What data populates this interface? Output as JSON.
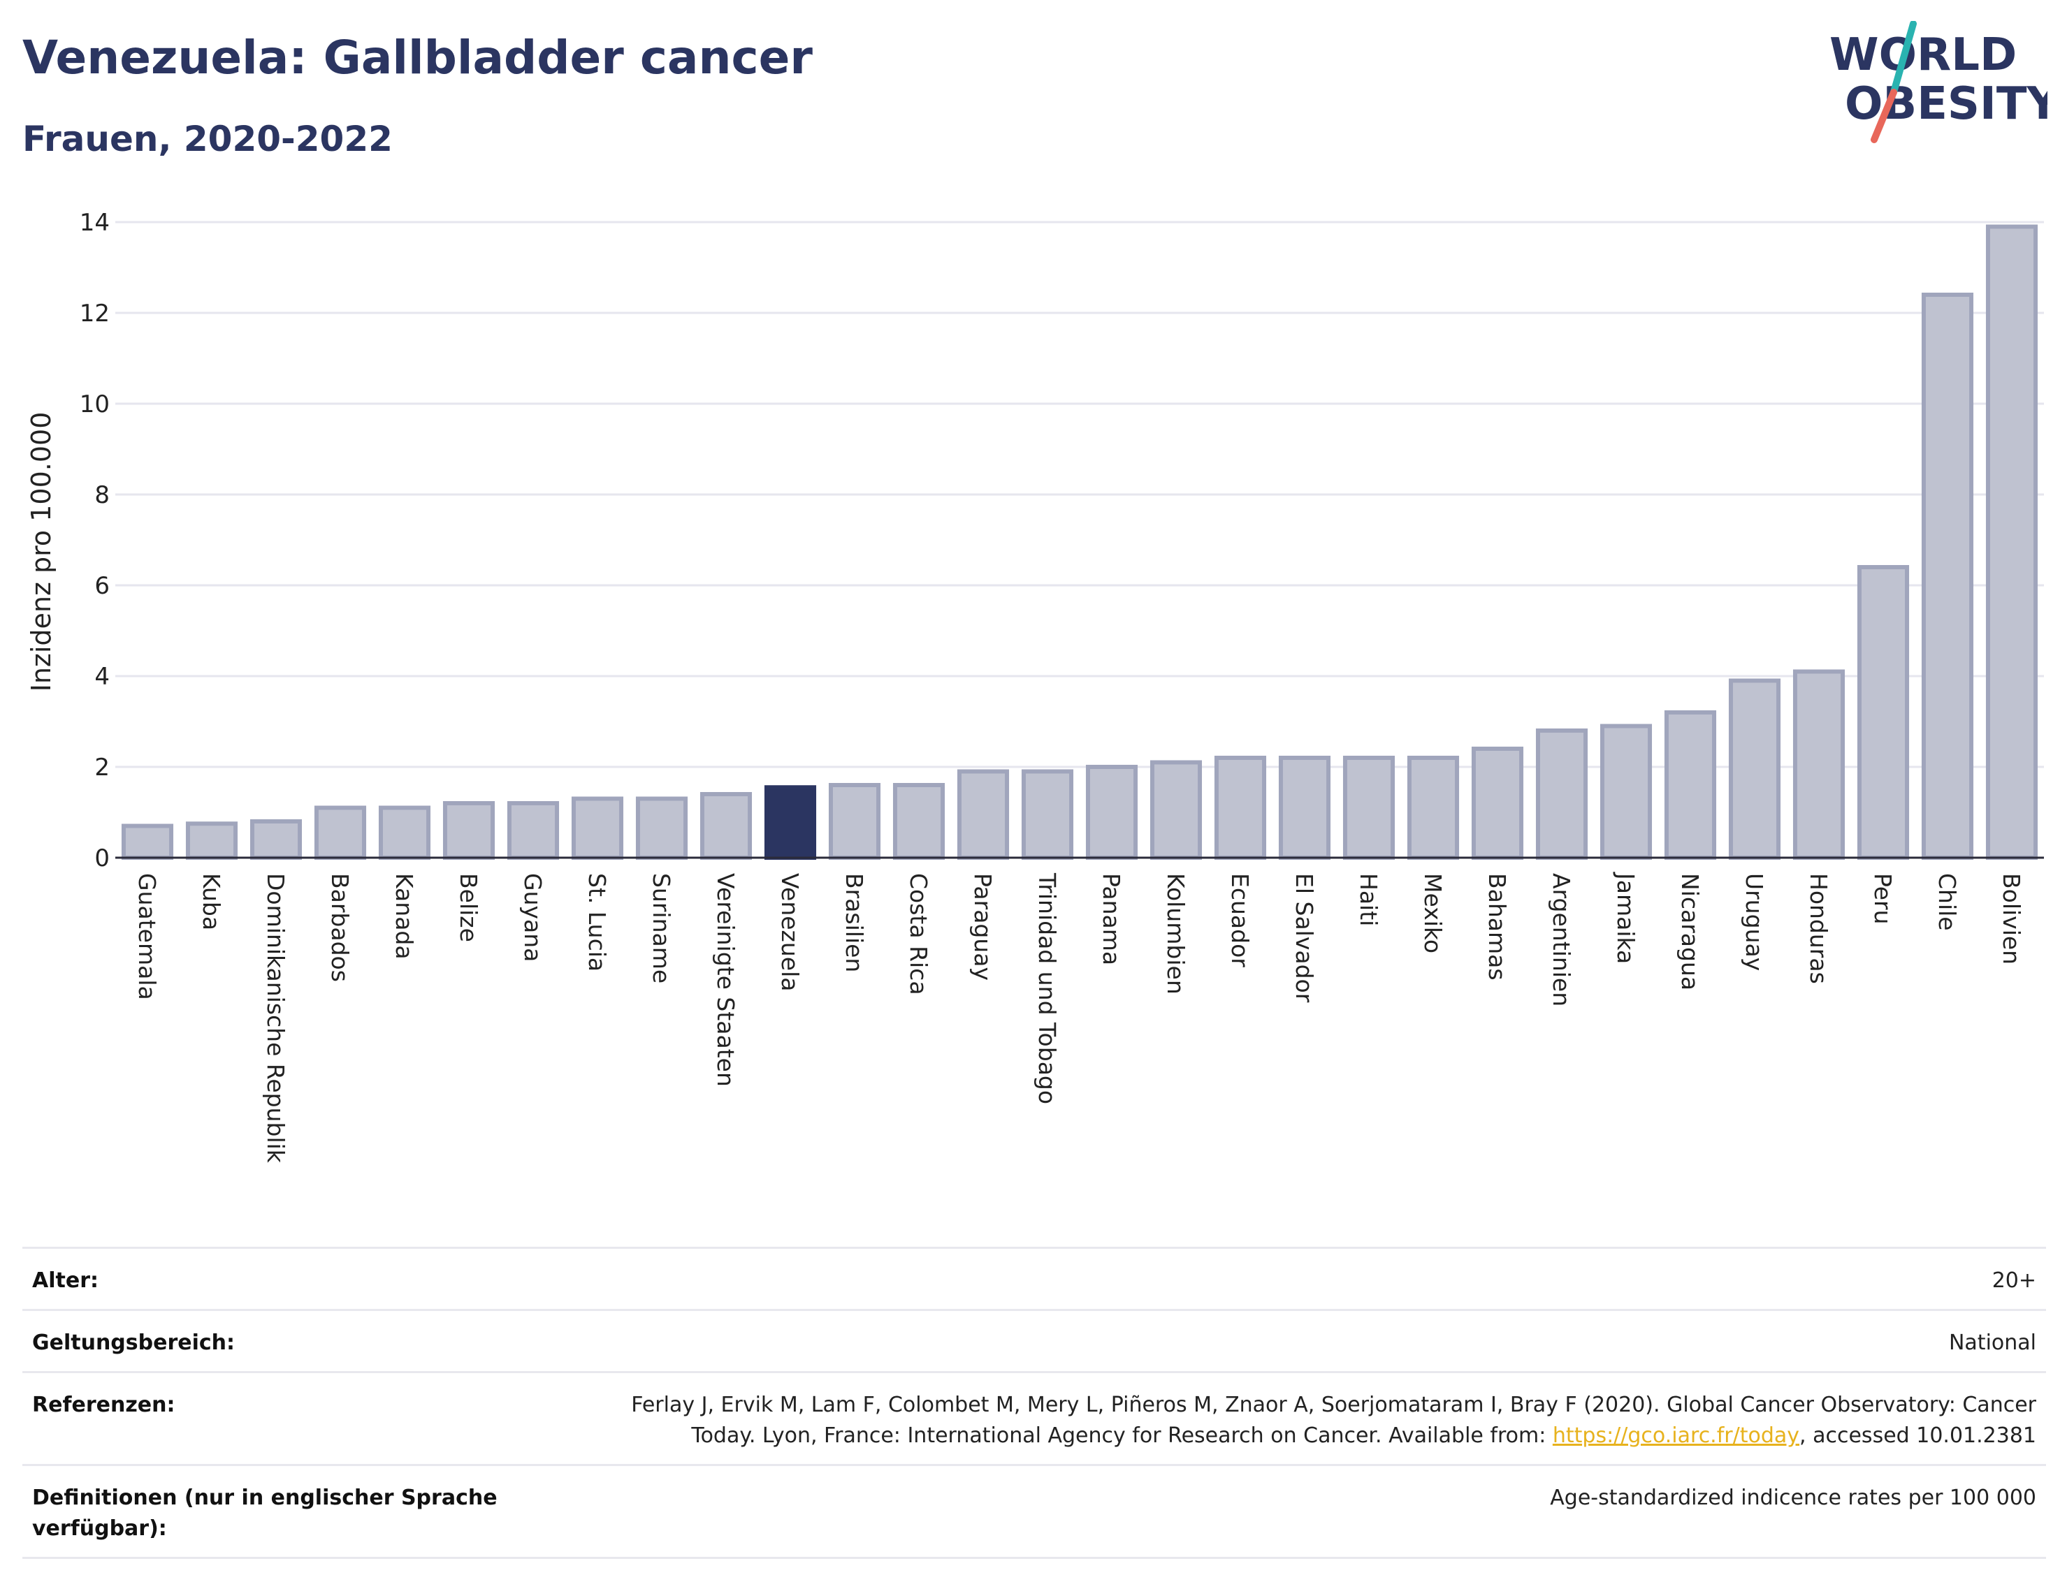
{
  "header": {
    "title": "Venezuela: Gallbladder cancer",
    "subtitle": "Frauen, 2020-2022"
  },
  "logo": {
    "line1": "WORLD",
    "line2": "OBESITY",
    "colors": {
      "text": "#2b3561",
      "slash_teal": "#2ab3b0",
      "slash_coral": "#e8675a"
    }
  },
  "colors": {
    "bar_fill": "#bfc2d0",
    "bar_stroke": "#a0a5bc",
    "highlight": "#2b3561",
    "grid": "#e6e6ee",
    "axis_text": "#222222"
  },
  "chart_data": {
    "type": "bar",
    "title": "Venezuela: Gallbladder cancer",
    "subtitle": "Frauen, 2020-2022",
    "xlabel": "",
    "ylabel": "Inzidenz pro 100.000",
    "ylim": [
      0,
      14
    ],
    "yticks": [
      0,
      2,
      4,
      6,
      8,
      10,
      12,
      14
    ],
    "grid": true,
    "highlight_category": "Venezuela",
    "categories": [
      "Guatemala",
      "Kuba",
      "Dominikanische Republik",
      "Barbados",
      "Kanada",
      "Belize",
      "Guyana",
      "St. Lucia",
      "Suriname",
      "Vereinigte Staaten",
      "Venezuela",
      "Brasilien",
      "Costa Rica",
      "Paraguay",
      "Trinidad und Tobago",
      "Panama",
      "Kolumbien",
      "Ecuador",
      "El Salvador",
      "Haiti",
      "Mexiko",
      "Bahamas",
      "Argentinien",
      "Jamaika",
      "Nicaragua",
      "Uruguay",
      "Honduras",
      "Peru",
      "Chile",
      "Bolivien"
    ],
    "values": [
      0.7,
      0.75,
      0.8,
      1.1,
      1.1,
      1.2,
      1.2,
      1.3,
      1.3,
      1.4,
      1.55,
      1.6,
      1.6,
      1.9,
      1.9,
      2.0,
      2.1,
      2.2,
      2.2,
      2.2,
      2.2,
      2.4,
      2.8,
      2.9,
      3.2,
      3.9,
      4.1,
      6.4,
      12.4,
      13.9
    ]
  },
  "metadata": {
    "rows": [
      {
        "label": "Alter:",
        "value": "20+"
      },
      {
        "label": "Geltungsbereich:",
        "value": "National"
      },
      {
        "label": "Referenzen:",
        "value_part1": "Ferlay J, Ervik M, Lam F, Colombet M, Mery L, Piñeros M, Znaor A, Soerjomataram I, Bray F (2020). Global Cancer Observatory: Cancer Today. Lyon, France: International Agency for Research on Cancer. Available from: ",
        "link_text": "https://gco.iarc.fr/today",
        "value_part2": ", accessed 10.01.2381"
      },
      {
        "label": "Definitionen (nur in englischer Sprache verfügbar):",
        "value": "Age-standardized indicence rates per 100 000"
      }
    ]
  }
}
